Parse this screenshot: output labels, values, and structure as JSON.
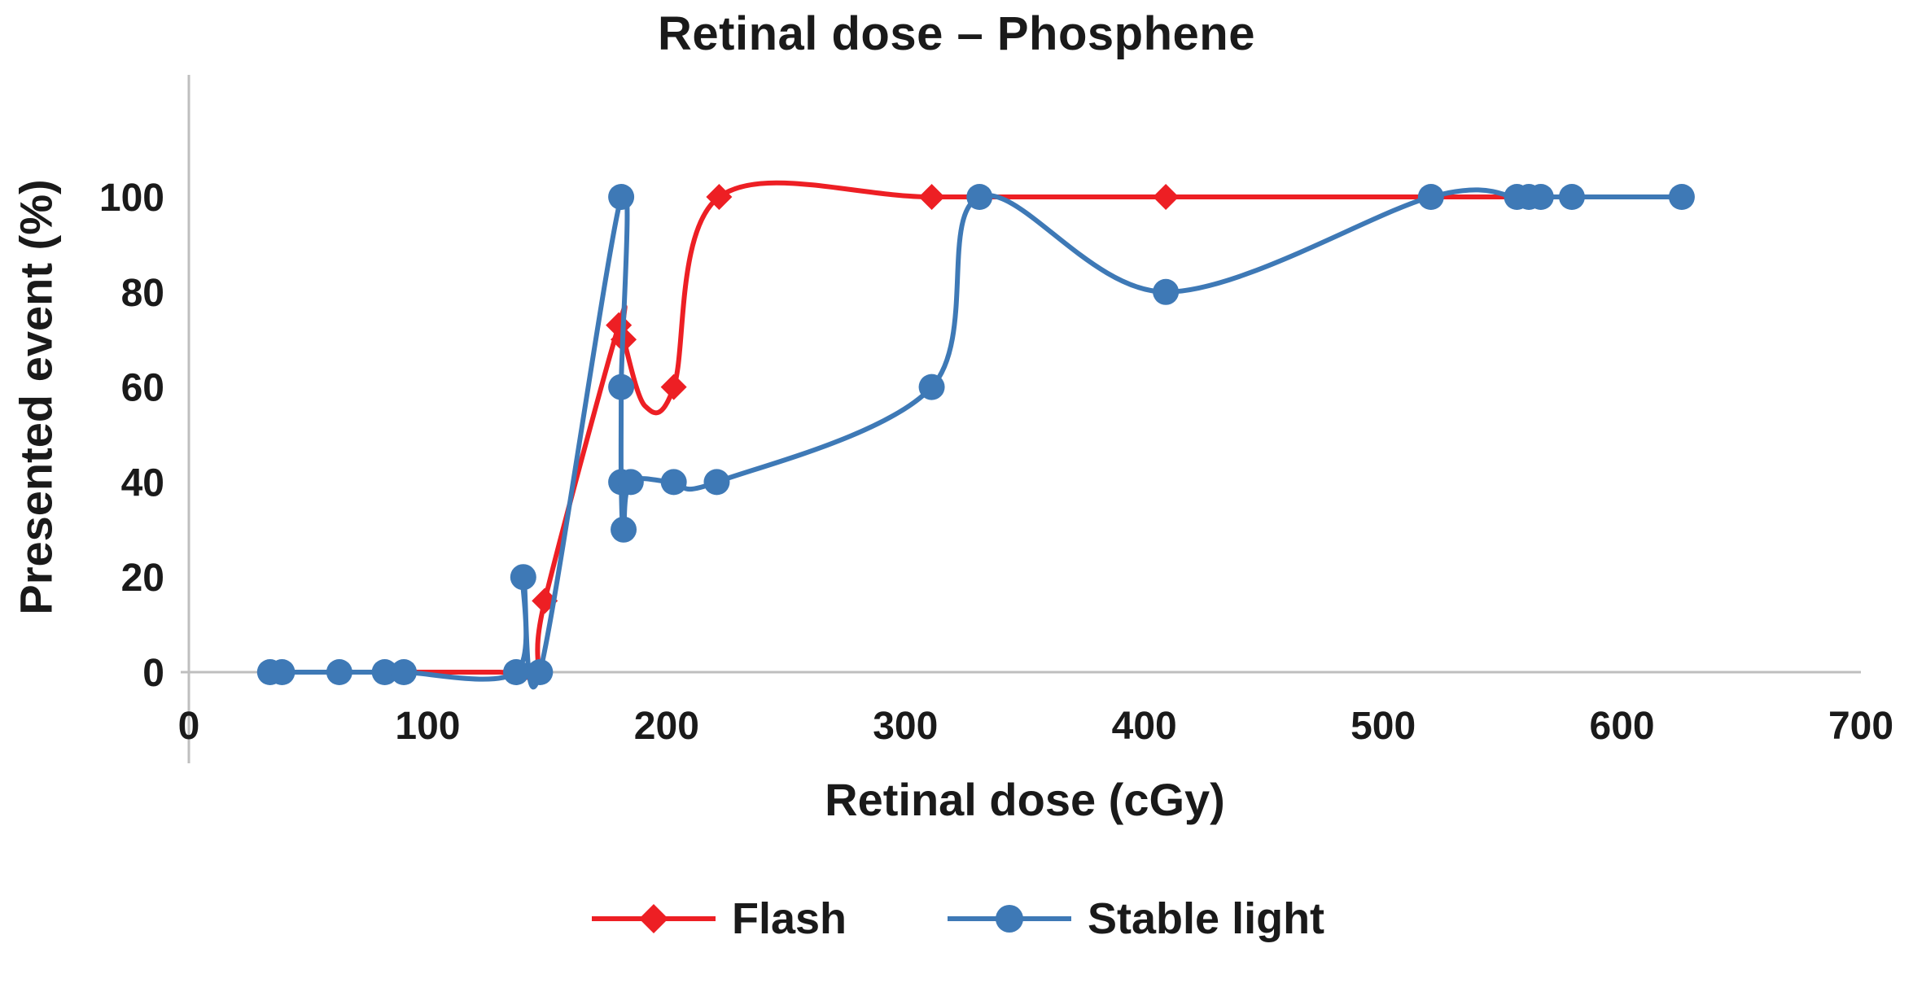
{
  "chart_data": {
    "type": "line",
    "title": "Retinal dose – Phosphene",
    "xlabel": "Retinal dose (cGy)",
    "ylabel": "Presented event (%)",
    "xlim": [
      0,
      700
    ],
    "ylim": [
      0,
      100
    ],
    "xticks": [
      0,
      100,
      200,
      300,
      400,
      500,
      600,
      700
    ],
    "yticks": [
      0,
      20,
      40,
      60,
      80,
      100
    ],
    "grid": false,
    "smoothing": "spline",
    "legend_position": "bottom",
    "axis_color": "#bfbfbf",
    "text_color": "#1a1a1a",
    "point_format": "[x_cGy, y_percent, marker_visible]",
    "series": [
      {
        "id": "flash",
        "name": "Flash",
        "color": "#ed1f24",
        "marker": "diamond",
        "points": [
          [
            34,
            0,
            0
          ],
          [
            63,
            0,
            0
          ],
          [
            90,
            0,
            0
          ],
          [
            130,
            0,
            0
          ],
          [
            145,
            0,
            0
          ],
          [
            149,
            15,
            1
          ],
          [
            180,
            73,
            1
          ],
          [
            182,
            70,
            1
          ],
          [
            191,
            56,
            0
          ],
          [
            203,
            60,
            1
          ],
          [
            222,
            100,
            1
          ],
          [
            311,
            100,
            1
          ],
          [
            409,
            100,
            1
          ],
          [
            480,
            100,
            0
          ],
          [
            555,
            100,
            0
          ]
        ]
      },
      {
        "id": "stable-light",
        "name": "Stable light",
        "color": "#3e79b6",
        "marker": "circle",
        "points": [
          [
            34,
            0,
            1
          ],
          [
            39,
            0,
            1
          ],
          [
            63,
            0,
            1
          ],
          [
            82,
            0,
            1
          ],
          [
            90,
            0,
            1
          ],
          [
            137,
            0,
            1
          ],
          [
            140,
            20,
            1
          ],
          [
            147,
            0,
            1
          ],
          [
            181,
            100,
            1
          ],
          [
            181,
            60,
            1
          ],
          [
            181,
            40,
            1
          ],
          [
            182,
            30,
            1
          ],
          [
            185,
            40,
            1
          ],
          [
            203,
            40,
            1
          ],
          [
            221,
            40,
            1
          ],
          [
            311,
            60,
            1
          ],
          [
            331,
            100,
            1
          ],
          [
            409,
            80,
            1
          ],
          [
            520,
            100,
            1
          ],
          [
            556,
            100,
            1
          ],
          [
            561,
            100,
            1
          ],
          [
            566,
            100,
            1
          ],
          [
            579,
            100,
            1
          ],
          [
            625,
            100,
            1
          ]
        ]
      }
    ]
  }
}
